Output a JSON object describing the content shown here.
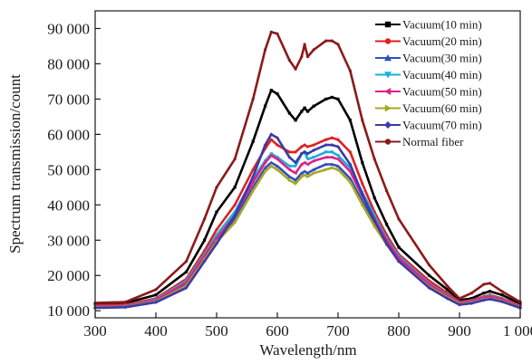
{
  "chart_data": {
    "type": "line",
    "xlabel": "Wavelength/nm",
    "ylabel": "Spectrum transmission/count",
    "xlim": [
      300,
      1000
    ],
    "ylim": [
      8000,
      95000
    ],
    "x_ticks": [
      300,
      400,
      500,
      600,
      700,
      800,
      900,
      1000
    ],
    "x_tick_labels": [
      "300",
      "400",
      "500",
      "600",
      "700",
      "800",
      "900",
      "1 000"
    ],
    "y_ticks": [
      10000,
      20000,
      30000,
      40000,
      50000,
      60000,
      70000,
      80000,
      90000
    ],
    "y_tick_labels": [
      "10 000",
      "20 000",
      "30 000",
      "40 000",
      "50 000",
      "60 000",
      "70 000",
      "80 000",
      "90 000"
    ],
    "grid": false,
    "legend_position": "top-right",
    "x": [
      300,
      350,
      400,
      450,
      480,
      500,
      530,
      560,
      580,
      590,
      600,
      620,
      630,
      640,
      645,
      650,
      660,
      680,
      690,
      700,
      720,
      740,
      760,
      780,
      800,
      850,
      880,
      900,
      920,
      940,
      950,
      970,
      1000
    ],
    "series": [
      {
        "name": "Vacuum(10 min)",
        "color": "#000000",
        "marker": "square",
        "values": [
          12000,
          12200,
          14500,
          21000,
          30000,
          38000,
          45000,
          58000,
          68000,
          72500,
          71500,
          66000,
          64000,
          66500,
          67500,
          66500,
          68000,
          70000,
          70500,
          70000,
          64000,
          52000,
          42000,
          34500,
          28000,
          20000,
          16000,
          13000,
          13500,
          15000,
          15500,
          14500,
          12000
        ]
      },
      {
        "name": "Vacuum(20 min)",
        "color": "#e02020",
        "marker": "circle",
        "values": [
          11500,
          11700,
          13500,
          19000,
          27000,
          33000,
          40000,
          50000,
          56000,
          58500,
          57000,
          55000,
          55000,
          56500,
          57000,
          56500,
          57000,
          58500,
          59000,
          58500,
          55000,
          46000,
          38000,
          31500,
          26000,
          18500,
          15000,
          12500,
          13000,
          14000,
          14500,
          13500,
          11500
        ]
      },
      {
        "name": "Vacuum(30 min)",
        "color": "#3050c0",
        "marker": "triangle-up",
        "values": [
          11000,
          11200,
          12800,
          17500,
          25000,
          30000,
          36000,
          45000,
          50500,
          52000,
          51000,
          48000,
          47000,
          49000,
          49500,
          49000,
          50000,
          51500,
          51500,
          51000,
          47500,
          41000,
          35000,
          29500,
          24500,
          17000,
          14000,
          12000,
          12500,
          13500,
          13800,
          13000,
          11000
        ]
      },
      {
        "name": "Vacuum(40 min)",
        "color": "#18b0d8",
        "marker": "triangle-down",
        "values": [
          11200,
          11400,
          13200,
          18500,
          26000,
          31500,
          38000,
          47500,
          52500,
          54500,
          53500,
          51000,
          51000,
          54500,
          55000,
          53000,
          53500,
          55000,
          55000,
          54000,
          50500,
          43500,
          37000,
          30500,
          25500,
          17800,
          14500,
          12300,
          12800,
          13800,
          14200,
          13300,
          11300
        ]
      },
      {
        "name": "Vacuum(50 min)",
        "color": "#e0208a",
        "marker": "triangle-left",
        "values": [
          11100,
          11300,
          13000,
          18000,
          25500,
          30500,
          37000,
          46500,
          52000,
          54000,
          53000,
          50000,
          49000,
          51500,
          52000,
          51500,
          52500,
          53500,
          53500,
          53000,
          49500,
          42500,
          36000,
          30000,
          25000,
          17500,
          14300,
          12200,
          12700,
          13700,
          14000,
          13200,
          11200
        ]
      },
      {
        "name": "Vacuum(60 min)",
        "color": "#a8a820",
        "marker": "triangle-right",
        "values": [
          10900,
          11100,
          12600,
          17000,
          24500,
          29500,
          35000,
          44000,
          49500,
          51000,
          50000,
          47000,
          46000,
          48000,
          48500,
          48000,
          49000,
          50000,
          50500,
          50000,
          46500,
          40000,
          34000,
          28800,
          24000,
          16800,
          13800,
          11900,
          12300,
          13200,
          13500,
          12800,
          10900
        ]
      },
      {
        "name": "Vacuum(70 min)",
        "color": "#3a3aa8",
        "marker": "diamond",
        "values": [
          10800,
          11000,
          12400,
          16500,
          24000,
          29000,
          37000,
          48000,
          57000,
          60000,
          59000,
          53500,
          52000,
          54500,
          55000,
          54500,
          55500,
          57000,
          57000,
          56500,
          51500,
          43000,
          35500,
          29000,
          24000,
          16500,
          13500,
          11700,
          12100,
          13000,
          13300,
          12600,
          10800
        ]
      },
      {
        "name": "Normal fiber",
        "color": "#8b1a1a",
        "marker": "circle",
        "values": [
          12200,
          12500,
          16000,
          24000,
          36000,
          45000,
          53000,
          70000,
          84000,
          89000,
          88500,
          81000,
          78500,
          82000,
          85500,
          82000,
          84000,
          86500,
          86500,
          85500,
          78000,
          64000,
          53000,
          44000,
          36000,
          23000,
          17000,
          13500,
          15000,
          17500,
          17800,
          15500,
          12500
        ]
      }
    ]
  }
}
